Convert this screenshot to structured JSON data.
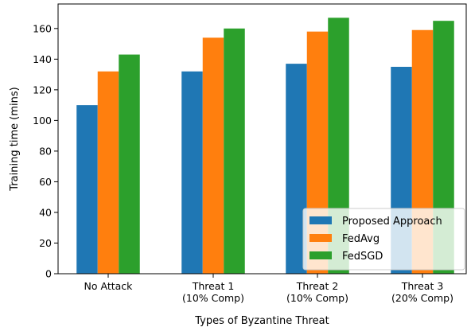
{
  "chart_data": {
    "type": "bar",
    "title": "",
    "xlabel": "Types of Byzantine Threat",
    "ylabel": "Training time (mins)",
    "categories": [
      [
        "No Attack"
      ],
      [
        "Threat 1",
        "(10% Comp)"
      ],
      [
        "Threat 2",
        "(10% Comp)"
      ],
      [
        "Threat 3",
        "(20% Comp)"
      ]
    ],
    "series": [
      {
        "name": "Proposed Approach",
        "color": "#1f77b4",
        "values": [
          110,
          132,
          137,
          135
        ]
      },
      {
        "name": "FedAvg",
        "color": "#ff7f0e",
        "values": [
          132,
          154,
          158,
          159
        ]
      },
      {
        "name": "FedSGD",
        "color": "#2ca02c",
        "values": [
          143,
          160,
          167,
          165
        ]
      }
    ],
    "ylim": [
      0,
      176
    ],
    "yticks": [
      0,
      20,
      40,
      60,
      80,
      100,
      120,
      140,
      160
    ],
    "grid": false,
    "legend_position": "lower-right"
  }
}
